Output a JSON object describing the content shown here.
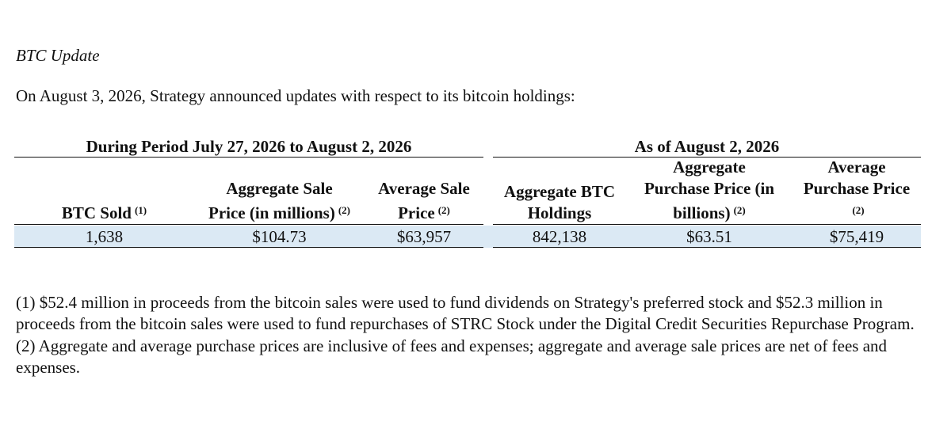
{
  "title": "BTC Update",
  "intro": "On August 3, 2026, Strategy announced updates with respect to its bitcoin holdings:",
  "table": {
    "groups": [
      "During Period July 27, 2026 to August 2, 2026",
      "As of August 2, 2026"
    ],
    "columns": [
      [
        {
          "text": "BTC Sold",
          "note": "(1)"
        }
      ],
      [
        {
          "text": "Aggregate Sale"
        },
        {
          "text": "Price (in millions)",
          "note": "(2)"
        }
      ],
      [
        {
          "text": "Average Sale"
        },
        {
          "text": "Price",
          "note": "(2)"
        }
      ],
      [
        {
          "text": "Aggregate BTC"
        },
        {
          "text": "Holdings"
        }
      ],
      [
        {
          "text": "Aggregate"
        },
        {
          "text": "Purchase Price (in"
        },
        {
          "text": "billions)",
          "note": "(2)"
        }
      ],
      [
        {
          "text": "Average"
        },
        {
          "text": "Purchase Price"
        },
        {
          "note": "(2)"
        }
      ]
    ],
    "rows": [
      [
        "1,638",
        "$104.73",
        "$63,957",
        "842,138",
        "$63.51",
        "$75,419"
      ]
    ]
  },
  "footnotes": [
    "(1) $52.4 million in proceeds from the bitcoin sales were used to fund dividends on Strategy's preferred stock and $52.3 million in proceeds from the bitcoin sales were used to fund repurchases of STRC Stock under the Digital Credit Securities Repurchase Program.",
    "(2) Aggregate and average purchase prices are inclusive of fees and expenses; aggregate and average sale prices are net of fees and expenses."
  ]
}
